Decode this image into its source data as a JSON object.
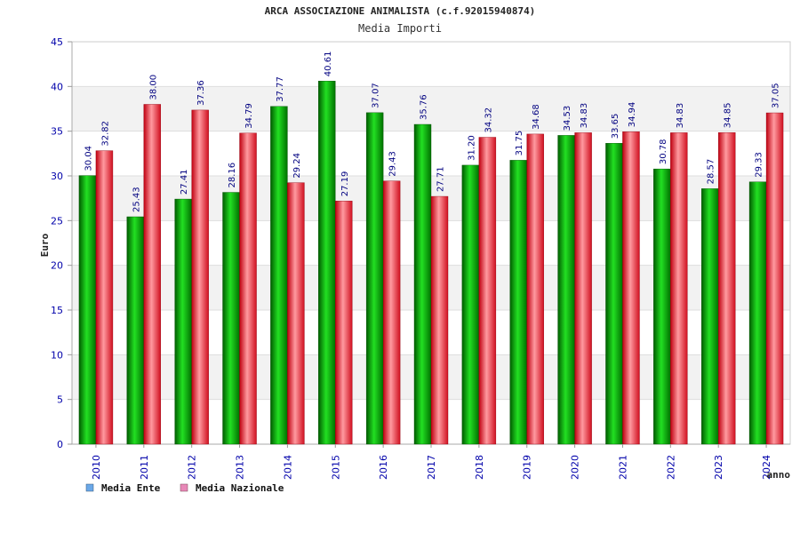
{
  "header": {
    "title": "ARCA ASSOCIAZIONE ANIMALISTA (c.f.92015940874)",
    "subtitle": "Media Importi"
  },
  "chart_data": {
    "type": "bar",
    "title": "ARCA ASSOCIAZIONE ANIMALISTA (c.f.92015940874)",
    "subtitle": "Media Importi",
    "xlabel": "anno",
    "ylabel": "Euro",
    "ylim": [
      0,
      45
    ],
    "yticks": [
      0,
      5,
      10,
      15,
      20,
      25,
      30,
      35,
      40,
      45
    ],
    "grid": true,
    "legend_position": "bottom-left",
    "categories": [
      "2010",
      "2011",
      "2012",
      "2013",
      "2014",
      "2015",
      "2016",
      "2017",
      "2018",
      "2019",
      "2020",
      "2021",
      "2022",
      "2023",
      "2024"
    ],
    "series": [
      {
        "name": "Media Ente",
        "legend_color": "#6aa8e8",
        "color": "#00a000",
        "values": [
          30.04,
          25.43,
          27.41,
          28.16,
          37.77,
          40.61,
          37.07,
          35.76,
          31.2,
          31.75,
          34.53,
          33.65,
          30.78,
          28.57,
          29.33
        ],
        "labels": [
          "30.04",
          "25.43",
          "27.41",
          "28.16",
          "37.77",
          "40.61",
          "37.07",
          "35.76",
          "31.20",
          "31.75",
          "34.53",
          "33.65",
          "30.78",
          "28.57",
          "29.33"
        ]
      },
      {
        "name": "Media Nazionale",
        "legend_color": "#e888b8",
        "color": "#e8202a",
        "values": [
          32.82,
          38.0,
          37.36,
          34.79,
          29.24,
          27.19,
          29.43,
          27.71,
          34.32,
          34.68,
          34.83,
          34.94,
          34.83,
          34.85,
          37.05
        ],
        "labels": [
          "32.82",
          "38.00",
          "37.36",
          "34.79",
          "29.24",
          "27.19",
          "29.43",
          "27.71",
          "34.32",
          "34.68",
          "34.83",
          "34.94",
          "34.83",
          "34.85",
          "37.05"
        ]
      }
    ]
  }
}
